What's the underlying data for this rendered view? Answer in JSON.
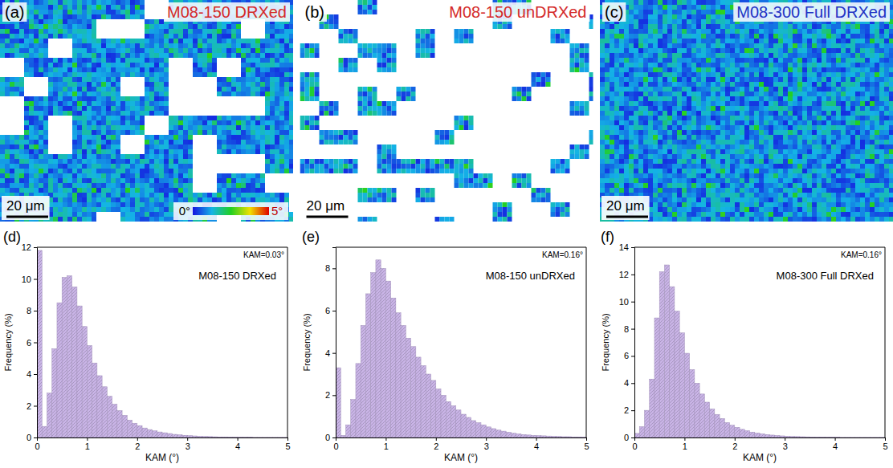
{
  "maps": [
    {
      "letter": "(a)",
      "title": "M08-150 DRXed",
      "color": "#d42a2a",
      "scale_bar": "20 μm"
    },
    {
      "letter": "(b)",
      "title": "M08-150 unDRXed",
      "color": "#d42a2a",
      "scale_bar": "20 μm"
    },
    {
      "letter": "(c)",
      "title": "M08-300 Full DRXed",
      "color": "#2233c4",
      "scale_bar": "20 μm"
    }
  ],
  "color_bar": {
    "range": [
      0,
      5
    ],
    "ticks": [
      {
        "value": 0,
        "label": "0°"
      },
      {
        "value": 5,
        "label": "5°"
      }
    ]
  },
  "chart_data": [
    {
      "type": "histogram",
      "letter": "(d)",
      "title": "M08-150 DRXed",
      "annotation": "KAM=0.03°",
      "x_label": "KAM (°)",
      "y_label": "Frequency (%)",
      "color": "#c9b4e6",
      "bins": [
        0,
        0.1,
        0.2,
        0.3,
        0.4,
        0.5,
        0.6,
        0.7,
        0.8,
        0.9,
        1,
        1.1,
        1.2,
        1.3,
        1.4,
        1.5,
        1.6,
        1.7,
        1.8,
        1.9,
        2,
        2.1,
        2.2,
        2.3,
        2.4,
        2.5,
        2.6,
        2.7,
        2.8,
        2.9,
        3,
        3.1,
        3.2,
        3.3,
        3.4,
        3.5,
        3.6,
        3.7,
        3.8,
        3.9,
        4,
        4.1,
        4.2,
        4.3,
        4.4,
        4.5,
        4.6,
        4.7,
        4.8,
        4.9,
        5
      ],
      "values": [
        11.8,
        0.7,
        2.8,
        5.6,
        8.5,
        10.1,
        10.2,
        9.5,
        8.3,
        7.0,
        5.8,
        4.7,
        3.9,
        3.2,
        2.6,
        2.1,
        1.7,
        1.4,
        1.1,
        0.9,
        0.75,
        0.6,
        0.5,
        0.42,
        0.35,
        0.3,
        0.25,
        0.2,
        0.17,
        0.14,
        0.12,
        0.1,
        0.08,
        0.07,
        0.06,
        0.05,
        0.04,
        0.04,
        0.03,
        0.03,
        0.02,
        0.02,
        0.02,
        0.01,
        0.01,
        0.01,
        0.01,
        0.01,
        0.01,
        0.01
      ],
      "xlim": [
        0,
        5
      ],
      "xticks": [
        0,
        1,
        2,
        3,
        4,
        5
      ],
      "ylim": [
        0,
        12
      ],
      "yticks": [
        0,
        2,
        4,
        6,
        8,
        10,
        12
      ]
    },
    {
      "type": "histogram",
      "letter": "(e)",
      "title": "M08-150 unDRXed",
      "annotation": "KAM=0.16°",
      "x_label": "KAM (°)",
      "y_label": "Frequency (%)",
      "color": "#c9b4e6",
      "bins": [
        0,
        0.1,
        0.2,
        0.3,
        0.4,
        0.5,
        0.6,
        0.7,
        0.8,
        0.9,
        1,
        1.1,
        1.2,
        1.3,
        1.4,
        1.5,
        1.6,
        1.7,
        1.8,
        1.9,
        2,
        2.1,
        2.2,
        2.3,
        2.4,
        2.5,
        2.6,
        2.7,
        2.8,
        2.9,
        3,
        3.1,
        3.2,
        3.3,
        3.4,
        3.5,
        3.6,
        3.7,
        3.8,
        3.9,
        4,
        4.1,
        4.2,
        4.3,
        4.4,
        4.5,
        4.6,
        4.7,
        4.8,
        4.9,
        5
      ],
      "values": [
        3.3,
        0.1,
        0.6,
        1.8,
        3.5,
        5.3,
        6.8,
        7.8,
        8.4,
        8.0,
        7.4,
        6.6,
        5.9,
        5.3,
        4.7,
        4.3,
        3.8,
        3.4,
        3.0,
        2.7,
        2.3,
        2.0,
        1.7,
        1.5,
        1.3,
        1.1,
        0.95,
        0.8,
        0.7,
        0.6,
        0.5,
        0.42,
        0.35,
        0.3,
        0.25,
        0.2,
        0.17,
        0.14,
        0.12,
        0.1,
        0.09,
        0.08,
        0.07,
        0.06,
        0.05,
        0.04,
        0.04,
        0.03,
        0.03,
        0.02
      ],
      "xlim": [
        0,
        5
      ],
      "xticks": [
        0,
        1,
        2,
        3,
        4,
        5
      ],
      "ylim": [
        0,
        9
      ],
      "yticks": [
        0,
        2,
        4,
        6,
        8
      ]
    },
    {
      "type": "histogram",
      "letter": "(f)",
      "title": "M08-300 Full DRXed",
      "annotation": "KAM=0.16°",
      "x_label": "KAM (°)",
      "y_label": "Frequency (%)",
      "color": "#c9b4e6",
      "bins": [
        0,
        0.1,
        0.2,
        0.3,
        0.4,
        0.5,
        0.6,
        0.7,
        0.8,
        0.9,
        1,
        1.1,
        1.2,
        1.3,
        1.4,
        1.5,
        1.6,
        1.7,
        1.8,
        1.9,
        2,
        2.1,
        2.2,
        2.3,
        2.4,
        2.5,
        2.6,
        2.7,
        2.8,
        2.9,
        3,
        3.1,
        3.2,
        3.3,
        3.4,
        3.5,
        3.6,
        3.7,
        3.8,
        3.9,
        4,
        4.1,
        4.2,
        4.3,
        4.4,
        4.5,
        4.6,
        4.7,
        4.8,
        4.9,
        5
      ],
      "values": [
        0.3,
        0.8,
        2.0,
        4.3,
        8.8,
        12.2,
        12.7,
        11.1,
        9.3,
        7.7,
        6.2,
        5.0,
        4.0,
        3.2,
        2.6,
        2.1,
        1.7,
        1.4,
        1.1,
        0.9,
        0.75,
        0.6,
        0.5,
        0.4,
        0.33,
        0.27,
        0.22,
        0.18,
        0.15,
        0.12,
        0.1,
        0.08,
        0.07,
        0.06,
        0.05,
        0.04,
        0.03,
        0.03,
        0.02,
        0.02,
        0.02,
        0.01,
        0.01,
        0.01,
        0.01,
        0.01,
        0.01,
        0.01,
        0.01,
        0.01
      ],
      "xlim": [
        0,
        5
      ],
      "xticks": [
        0,
        1,
        2,
        3,
        4,
        5
      ],
      "ylim": [
        0,
        14
      ],
      "yticks": [
        0,
        2,
        4,
        6,
        8,
        10,
        12,
        14
      ]
    }
  ]
}
